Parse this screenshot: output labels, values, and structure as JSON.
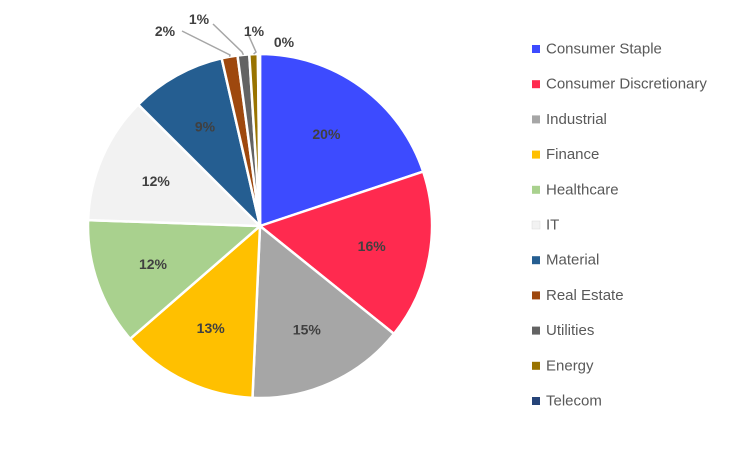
{
  "chart_data": {
    "type": "pie",
    "title": "",
    "legend_position": "right",
    "slices": [
      {
        "name": "Consumer Staple",
        "value": 20,
        "label": "20%",
        "color": "#3d4bff"
      },
      {
        "name": "Consumer Discretionary",
        "value": 16,
        "label": "16%",
        "color": "#ff2a4f"
      },
      {
        "name": "Industrial",
        "value": 15,
        "label": "15%",
        "color": "#a6a6a6"
      },
      {
        "name": "Finance",
        "value": 13,
        "label": "13%",
        "color": "#ffc000"
      },
      {
        "name": "Healthcare",
        "value": 12,
        "label": "12%",
        "color": "#a9d18e"
      },
      {
        "name": "IT",
        "value": 12,
        "label": "12%",
        "color": "#f2f2f2"
      },
      {
        "name": "Material",
        "value": 9,
        "label": "9%",
        "color": "#255e91"
      },
      {
        "name": "Real Estate",
        "value": 1.5,
        "label": "2%",
        "color": "#9e480e"
      },
      {
        "name": "Utilities",
        "value": 1.1,
        "label": "1%",
        "color": "#636363"
      },
      {
        "name": "Energy",
        "value": 0.8,
        "label": "1%",
        "color": "#997300"
      },
      {
        "name": "Telecom",
        "value": 0.2,
        "label": "0%",
        "color": "#264478"
      }
    ]
  }
}
